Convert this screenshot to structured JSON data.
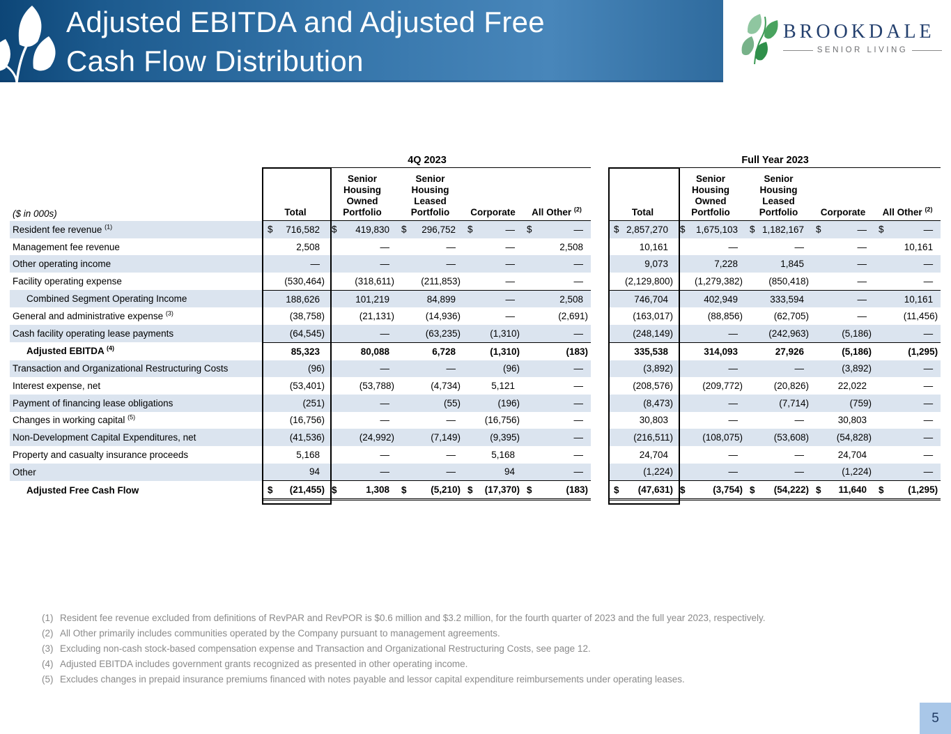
{
  "header": {
    "title_line1": "Adjusted EBITDA and Adjusted Free",
    "title_line2": "Cash Flow Distribution"
  },
  "logo": {
    "brand": "BROOKDALE",
    "tagline": "SENIOR LIVING"
  },
  "colors": {
    "banner_blue_dark": "#0d4677",
    "banner_blue_light": "#4886ba",
    "row_shade": "#dbe4ef",
    "brand_navy": "#24406e",
    "leaf_green_dark": "#2f8f4a",
    "leaf_green_light": "#8fc6a0",
    "footnote_gray": "#8a8a8a",
    "page_box_blue": "#a9c7e8"
  },
  "table": {
    "units_label": "($ in 000s)",
    "currency_symbol": "$",
    "sections": [
      {
        "label": "4Q 2023"
      },
      {
        "label": "Full Year 2023"
      }
    ],
    "columns": [
      {
        "label": "Total"
      },
      {
        "label": "Senior\nHousing\nOwned\nPortfolio"
      },
      {
        "label": "Senior\nHousing\nLeased\nPortfolio"
      },
      {
        "label": "Corporate"
      },
      {
        "label": "All Other",
        "sup": "(2)"
      }
    ],
    "rows": [
      {
        "label": "Resident fee revenue",
        "sup": "(1)",
        "dollar": true,
        "q4": [
          "716,582",
          "419,830",
          "296,752",
          "—",
          "—"
        ],
        "fy": [
          "2,857,270",
          "1,675,103",
          "1,182,167",
          "—",
          "—"
        ]
      },
      {
        "label": "Management fee revenue",
        "q4": [
          "2,508",
          "—",
          "—",
          "—",
          "2,508"
        ],
        "fy": [
          "10,161",
          "—",
          "—",
          "—",
          "10,161"
        ]
      },
      {
        "label": "Other operating income",
        "q4": [
          "—",
          "—",
          "—",
          "—",
          "—"
        ],
        "fy": [
          "9,073",
          "7,228",
          "1,845",
          "—",
          "—"
        ]
      },
      {
        "label": "Facility operating expense",
        "q4": [
          "(530,464)",
          "(318,611)",
          "(211,853)",
          "—",
          "—"
        ],
        "fy": [
          "(2,129,800)",
          "(1,279,382)",
          "(850,418)",
          "—",
          "—"
        ]
      },
      {
        "label": "Combined Segment Operating Income",
        "indent": true,
        "topline": true,
        "q4": [
          "188,626",
          "101,219",
          "84,899",
          "—",
          "2,508"
        ],
        "fy": [
          "746,704",
          "402,949",
          "333,594",
          "—",
          "10,161"
        ]
      },
      {
        "label": "General and administrative expense",
        "sup": "(3)",
        "q4": [
          "(38,758)",
          "(21,131)",
          "(14,936)",
          "—",
          "(2,691)"
        ],
        "fy": [
          "(163,017)",
          "(88,856)",
          "(62,705)",
          "—",
          "(11,456)"
        ]
      },
      {
        "label": "Cash facility operating lease payments",
        "q4": [
          "(64,545)",
          "—",
          "(63,235)",
          "(1,310)",
          "—"
        ],
        "fy": [
          "(248,149)",
          "—",
          "(242,963)",
          "(5,186)",
          "—"
        ]
      },
      {
        "label": "Adjusted EBITDA",
        "sup": "(4)",
        "indent": true,
        "bold": true,
        "topline": true,
        "q4": [
          "85,323",
          "80,088",
          "6,728",
          "(1,310)",
          "(183)"
        ],
        "fy": [
          "335,538",
          "314,093",
          "27,926",
          "(5,186)",
          "(1,295)"
        ]
      },
      {
        "label": "Transaction and Organizational Restructuring Costs",
        "q4": [
          "(96)",
          "—",
          "—",
          "(96)",
          "—"
        ],
        "fy": [
          "(3,892)",
          "—",
          "—",
          "(3,892)",
          "—"
        ]
      },
      {
        "label": "Interest expense, net",
        "q4": [
          "(53,401)",
          "(53,788)",
          "(4,734)",
          "5,121",
          "—"
        ],
        "fy": [
          "(208,576)",
          "(209,772)",
          "(20,826)",
          "22,022",
          "—"
        ]
      },
      {
        "label": "Payment of financing lease obligations",
        "q4": [
          "(251)",
          "—",
          "(55)",
          "(196)",
          "—"
        ],
        "fy": [
          "(8,473)",
          "—",
          "(7,714)",
          "(759)",
          "—"
        ]
      },
      {
        "label": "Changes in working capital",
        "sup": "(5)",
        "q4": [
          "(16,756)",
          "—",
          "—",
          "(16,756)",
          "—"
        ],
        "fy": [
          "30,803",
          "—",
          "—",
          "30,803",
          "—"
        ]
      },
      {
        "label": "Non-Development Capital Expenditures, net",
        "q4": [
          "(41,536)",
          "(24,992)",
          "(7,149)",
          "(9,395)",
          "—"
        ],
        "fy": [
          "(216,511)",
          "(108,075)",
          "(53,608)",
          "(54,828)",
          "—"
        ]
      },
      {
        "label": "Property and casualty insurance proceeds",
        "q4": [
          "5,168",
          "—",
          "—",
          "5,168",
          "—"
        ],
        "fy": [
          "24,704",
          "—",
          "—",
          "24,704",
          "—"
        ]
      },
      {
        "label": "Other",
        "q4": [
          "94",
          "—",
          "—",
          "94",
          "—"
        ],
        "fy": [
          "(1,224)",
          "—",
          "—",
          "(1,224)",
          "—"
        ]
      },
      {
        "label": "Adjusted Free Cash Flow",
        "indent": true,
        "bold": true,
        "topline": true,
        "dollar": true,
        "doubleline": true,
        "q4": [
          "(21,455)",
          "1,308",
          "(5,210)",
          "(17,370)",
          "(183)"
        ],
        "fy": [
          "(47,631)",
          "(3,754)",
          "(54,222)",
          "11,640",
          "(1,295)"
        ]
      }
    ]
  },
  "footnotes": [
    {
      "num": "(1)",
      "text": "Resident fee revenue excluded from definitions of RevPAR and RevPOR is $0.6 million and $3.2 million, for the fourth quarter of 2023 and the full year 2023, respectively."
    },
    {
      "num": "(2)",
      "text": "All Other primarily includes communities operated by the Company pursuant to management agreements."
    },
    {
      "num": "(3)",
      "text": "Excluding non-cash stock-based compensation expense and Transaction and Organizational Restructuring Costs, see page 12."
    },
    {
      "num": "(4)",
      "text": "Adjusted EBITDA includes government grants recognized as presented in other operating income."
    },
    {
      "num": "(5)",
      "text": "Excludes changes in prepaid insurance premiums financed with notes payable and lessor capital expenditure reimbursements under operating leases."
    }
  ],
  "page_number": "5"
}
